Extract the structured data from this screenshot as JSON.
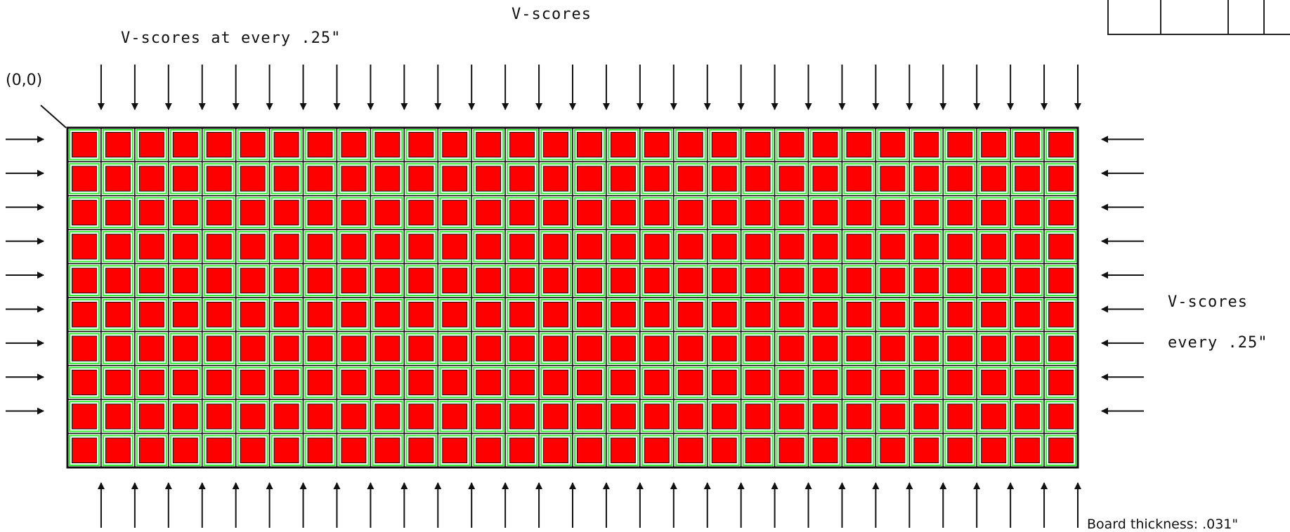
{
  "labels": {
    "title_top": "V-scores",
    "top_note": "V-scores at every .25\"",
    "origin": "(0,0)",
    "right_line1": "V-scores",
    "right_line2": "every .25\"",
    "board_thickness": "Board thickness: .031\""
  },
  "panel": {
    "columns": 30,
    "rows": 10,
    "cell_fill": "#ff0000",
    "frame_color": "#33ee33",
    "grid_color": "#111111"
  },
  "arrows": {
    "top_count": 30,
    "bottom_count": 30,
    "left_count": 9,
    "right_count": 9,
    "color": "#111111"
  }
}
